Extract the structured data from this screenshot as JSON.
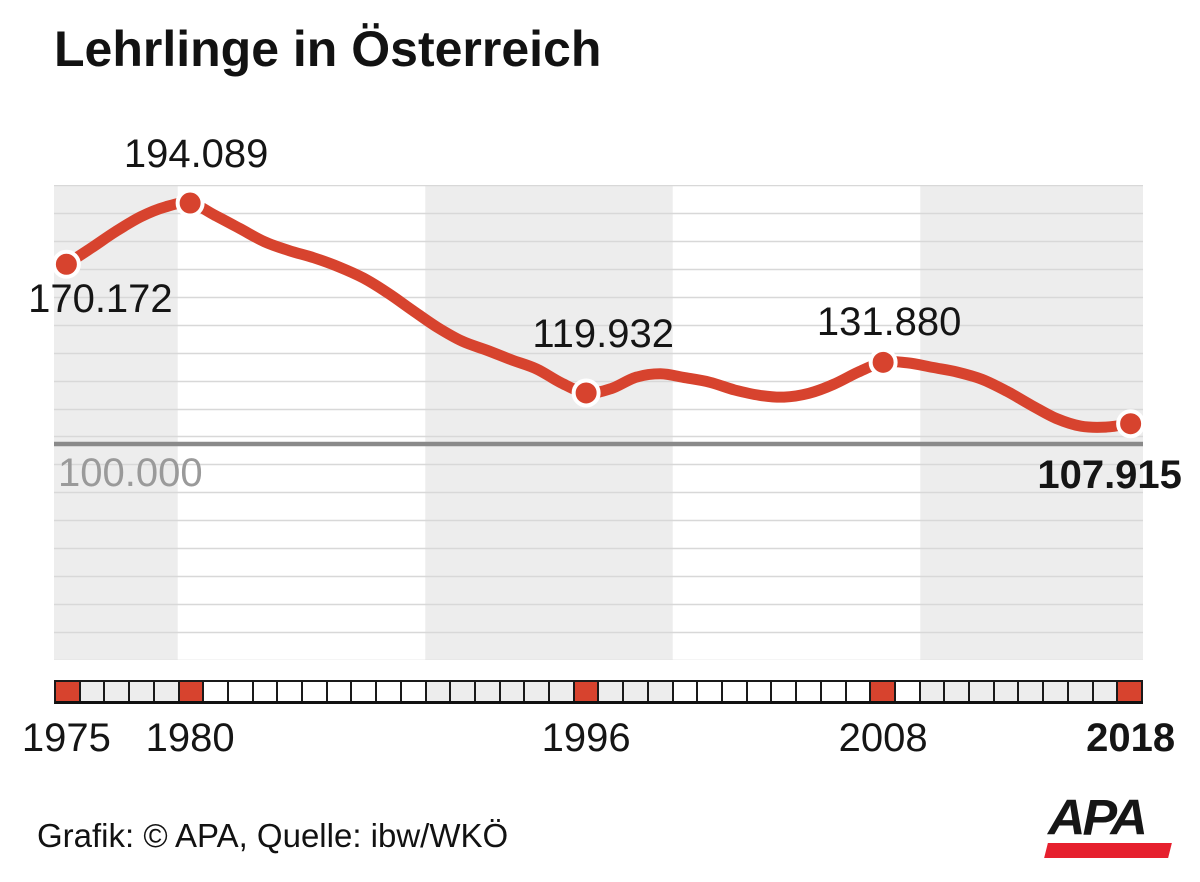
{
  "title": "Lehrlinge in Österreich",
  "footer": {
    "credit": "Grafik: © APA, Quelle: ibw/WKÖ",
    "logo_text": "APA"
  },
  "colors": {
    "line": "#d7432e",
    "marker_fill": "#d7432e",
    "marker_ring": "#ffffff",
    "band": "#ededed",
    "grid": "#d8d8d8",
    "baseline_line": "#8a8a8a",
    "baseline_label": "#9a9a9a",
    "text": "#151515",
    "logo_bar": "#e6202e"
  },
  "chart_data": {
    "type": "line",
    "title": "Lehrlinge in Österreich",
    "x_start_year": 1975,
    "x_end_year": 2018,
    "grid": true,
    "baseline": {
      "value": 100000,
      "label": "100.000"
    },
    "gray_band_year_ranges": [
      [
        1975,
        1980
      ],
      [
        1990,
        2000
      ],
      [
        2010,
        2019
      ]
    ],
    "x_axis_marked_years": [
      1975,
      1980,
      1996,
      2008,
      2018
    ],
    "x_axis_tick_labels": [
      "1975",
      "1980",
      "1996",
      "2008",
      "2018"
    ],
    "labeled_points": [
      {
        "year": 1975,
        "value": 170172,
        "label": "170.172",
        "bold": false
      },
      {
        "year": 1980,
        "value": 194089,
        "label": "194.089",
        "bold": false
      },
      {
        "year": 1996,
        "value": 119932,
        "label": "119.932",
        "bold": false
      },
      {
        "year": 2008,
        "value": 131880,
        "label": "131.880",
        "bold": false
      },
      {
        "year": 2018,
        "value": 107915,
        "label": "107.915",
        "bold": true
      }
    ],
    "series": [
      {
        "name": "Lehrlinge",
        "years": [
          1975,
          1976,
          1977,
          1978,
          1979,
          1980,
          1981,
          1982,
          1983,
          1984,
          1985,
          1986,
          1987,
          1988,
          1989,
          1990,
          1991,
          1992,
          1993,
          1994,
          1995,
          1996,
          1997,
          1998,
          1999,
          2000,
          2001,
          2002,
          2003,
          2004,
          2005,
          2006,
          2007,
          2008,
          2009,
          2010,
          2011,
          2012,
          2013,
          2014,
          2015,
          2016,
          2017,
          2018
        ],
        "values": [
          170172,
          176500,
          183000,
          188700,
          192600,
          194089,
          189300,
          184200,
          179000,
          175500,
          172700,
          169200,
          164800,
          158900,
          152100,
          145500,
          140100,
          136600,
          132800,
          129300,
          123800,
          119932,
          121600,
          126000,
          127400,
          125900,
          124100,
          121100,
          119000,
          118300,
          119800,
          123300,
          128100,
          131880,
          131676,
          129899,
          128078,
          125228,
          120579,
          115068,
          109963,
          106950,
          106613,
          107915
        ]
      }
    ],
    "ylim_implied": [
      15000,
      201000
    ]
  }
}
